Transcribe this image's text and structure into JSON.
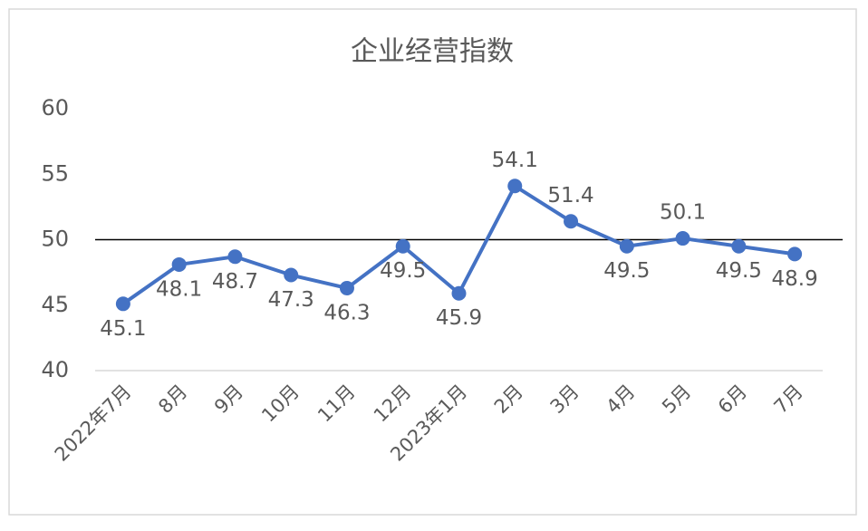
{
  "chart_data": {
    "type": "line",
    "title": "企业经营指数",
    "categories": [
      "2022年7月",
      "8月",
      "9月",
      "10月",
      "11月",
      "12月",
      "2023年1月",
      "2月",
      "3月",
      "4月",
      "5月",
      "6月",
      "7月"
    ],
    "series": [
      {
        "name": "企业经营指数",
        "color": "#4472c4",
        "values": [
          45.1,
          48.1,
          48.7,
          47.3,
          46.3,
          49.5,
          45.9,
          54.1,
          51.4,
          49.5,
          50.1,
          49.5,
          48.9
        ]
      }
    ],
    "ylim": [
      40,
      60
    ],
    "yticks": [
      40,
      45,
      50,
      55,
      60
    ],
    "grid": false,
    "reference_line": {
      "value": 50,
      "color": "#000000"
    }
  }
}
